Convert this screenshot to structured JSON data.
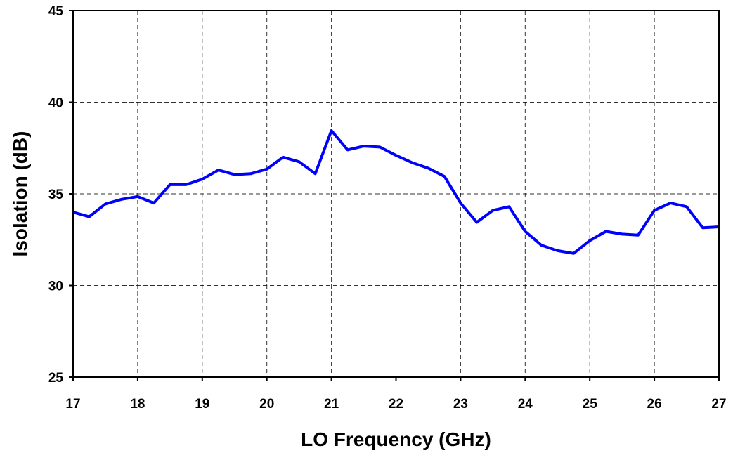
{
  "chart_data": {
    "type": "line",
    "title": "",
    "xlabel": "LO Frequency (GHz)",
    "ylabel": "Isolation (dB)",
    "xlim": [
      17,
      27
    ],
    "ylim": [
      25,
      45
    ],
    "xticks": [
      17,
      18,
      19,
      20,
      21,
      22,
      23,
      24,
      25,
      26,
      27
    ],
    "yticks": [
      25,
      30,
      35,
      40,
      45
    ],
    "grid": true,
    "series": [
      {
        "color": "#0000ff",
        "x": [
          17,
          17.25,
          17.5,
          17.75,
          18,
          18.25,
          18.5,
          18.75,
          19,
          19.25,
          19.5,
          19.75,
          20,
          20.25,
          20.5,
          20.75,
          21,
          21.25,
          21.5,
          21.75,
          22,
          22.25,
          22.5,
          22.75,
          23,
          23.25,
          23.5,
          23.75,
          24,
          24.25,
          24.5,
          24.75,
          25,
          25.25,
          25.5,
          25.75,
          26,
          26.25,
          26.5,
          26.75,
          27
        ],
        "y": [
          34.0,
          33.75,
          34.45,
          34.7,
          34.85,
          34.5,
          35.5,
          35.5,
          35.8,
          36.3,
          36.05,
          36.1,
          36.35,
          37.0,
          36.75,
          36.1,
          38.45,
          37.4,
          37.6,
          37.55,
          37.1,
          36.7,
          36.4,
          35.95,
          34.5,
          33.45,
          34.1,
          34.3,
          32.95,
          32.2,
          31.9,
          31.75,
          32.45,
          32.95,
          32.8,
          32.75,
          34.1,
          34.5,
          34.3,
          33.15,
          33.2
        ]
      }
    ]
  }
}
